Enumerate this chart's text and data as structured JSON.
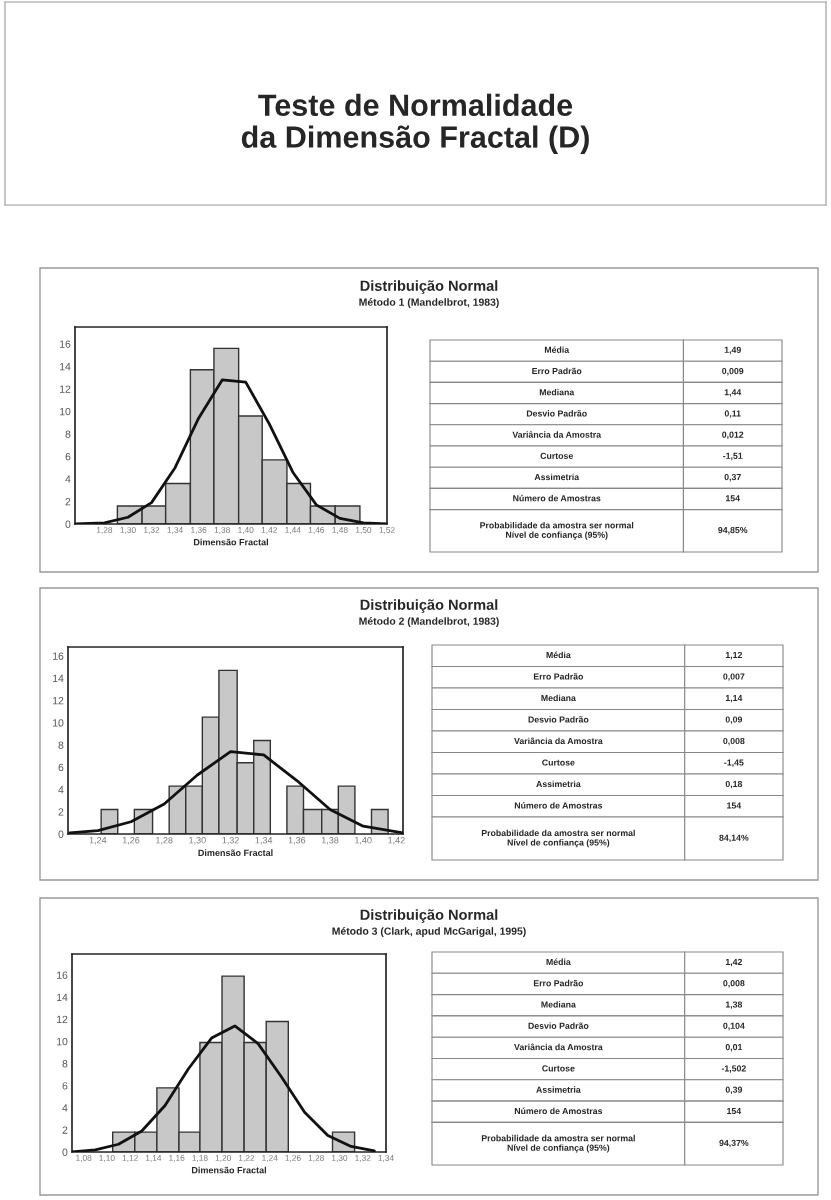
{
  "chart_data": [
    {
      "type": "other",
      "title": "Teste de Normalidade\nda Dimensão Fractal (D)"
    },
    {
      "type": "histogram",
      "title": "Distribuição Normal",
      "subtitle": "Método 1 (Mandelbrot, 1983)",
      "xlabel": "Dimensão Fractal",
      "series": [
        {
          "type": "histogram",
          "color": "#c8c8c8",
          "bins": [
            1.291,
            1.312,
            1.332,
            1.353,
            1.373,
            1.394,
            1.414,
            1.435,
            1.455,
            1.476,
            1.497
          ],
          "values": [
            1.6,
            1.6,
            3.6,
            13.7,
            15.6,
            9.6,
            5.7,
            3.6,
            1.6,
            1.6
          ]
        },
        {
          "type": "line",
          "color": "#111111",
          "x": [
            1.255,
            1.28,
            1.3,
            1.32,
            1.34,
            1.36,
            1.38,
            1.4,
            1.42,
            1.44,
            1.46,
            1.48,
            1.5,
            1.52
          ],
          "values": [
            0.0,
            0.1,
            0.6,
            1.9,
            5.0,
            9.4,
            12.8,
            12.6,
            8.9,
            4.6,
            1.7,
            0.5,
            0.1,
            0.0
          ]
        }
      ],
      "xlim": [
        1.255,
        1.52
      ],
      "ylim": [
        0,
        17.5
      ],
      "xticks": [
        {
          "value": 1.28,
          "label": "1,28"
        },
        {
          "value": 1.3,
          "label": "1,30"
        },
        {
          "value": 1.32,
          "label": "1,32"
        },
        {
          "value": 1.34,
          "label": "1,34"
        },
        {
          "value": 1.36,
          "label": "1,36"
        },
        {
          "value": 1.38,
          "label": "1,38"
        },
        {
          "value": 1.4,
          "label": "1,40"
        },
        {
          "value": 1.42,
          "label": "1,42"
        },
        {
          "value": 1.44,
          "label": "1,44"
        },
        {
          "value": 1.46,
          "label": "1,46"
        },
        {
          "value": 1.48,
          "label": "1,48"
        },
        {
          "value": 1.5,
          "label": "1,50"
        },
        {
          "value": 1.52,
          "label": "1,52"
        }
      ],
      "yticks": [
        0,
        2,
        4,
        6,
        8,
        10,
        12,
        14,
        16
      ],
      "annotations": [
        "Média",
        "1,49",
        "Erro Padrão",
        "0,009",
        "Mediana",
        "1,44",
        "Desvio Padrão",
        "0,11",
        "Variância da Amostra",
        "0,012",
        "Curtose",
        "-1,51",
        "Assimetria",
        "0,37",
        "Número de Amostras",
        "154",
        "Probabilidade da amostra ser normal\nNível de confiança (95%)",
        "94,85%"
      ]
    },
    {
      "type": "histogram",
      "title": "Distribuição Normal",
      "subtitle": "Método 2 (Mandelbrot, 1983)",
      "xlabel": "Dimensão Fractal",
      "series": [
        {
          "type": "histogram",
          "color": "#c8c8c8",
          "bins": [
            1.242,
            1.252,
            1.262,
            1.273,
            1.283,
            1.293,
            1.303,
            1.313,
            1.324,
            1.334,
            1.344,
            1.354,
            1.364,
            1.375,
            1.385,
            1.395,
            1.405,
            1.415
          ],
          "values": [
            2.2,
            null,
            2.2,
            null,
            4.3,
            4.3,
            10.5,
            14.7,
            6.4,
            8.4,
            null,
            4.3,
            2.2,
            2.2,
            4.3,
            null,
            2.2
          ]
        },
        {
          "type": "line",
          "color": "#111111",
          "x": [
            1.223,
            1.24,
            1.26,
            1.28,
            1.3,
            1.32,
            1.34,
            1.36,
            1.38,
            1.4,
            1.424
          ],
          "values": [
            0.1,
            0.3,
            1.1,
            2.7,
            5.3,
            7.4,
            7.1,
            4.8,
            2.2,
            0.7,
            0.1
          ]
        }
      ],
      "xlim": [
        1.222,
        1.424
      ],
      "ylim": [
        0,
        16.8
      ],
      "xticks": [
        {
          "value": 1.24,
          "label": "1,24"
        },
        {
          "value": 1.26,
          "label": "1,26"
        },
        {
          "value": 1.28,
          "label": "1,28"
        },
        {
          "value": 1.3,
          "label": "1,30"
        },
        {
          "value": 1.32,
          "label": "1,32"
        },
        {
          "value": 1.34,
          "label": "1,34"
        },
        {
          "value": 1.36,
          "label": "1,36"
        },
        {
          "value": 1.38,
          "label": "1,38"
        },
        {
          "value": 1.4,
          "label": "1,40"
        },
        {
          "value": 1.42,
          "label": "1,42"
        }
      ],
      "yticks": [
        0,
        2,
        4,
        6,
        8,
        10,
        12,
        14,
        16
      ],
      "annotations": [
        "Média",
        "1,12",
        "Erro Padrão",
        "0,007",
        "Mediana",
        "1,14",
        "Desvio Padrão",
        "0,09",
        "Variância da Amostra",
        "0,008",
        "Curtose",
        "-1,45",
        "Assimetria",
        "0,18",
        "Número de Amostras",
        "154",
        "Probabilidade da amostra ser normal\nNível de confiança (95%)",
        "84,14%"
      ]
    },
    {
      "type": "histogram",
      "title": "Distribuição Normal",
      "subtitle": "Método 3 (Clark, apud McGarigal, 1995)",
      "xlabel": "Dimensão Fractal",
      "series": [
        {
          "type": "histogram",
          "color": "#c8c8c8",
          "bins": [
            1.105,
            1.124,
            1.143,
            1.162,
            1.18,
            1.199,
            1.218,
            1.237,
            1.256,
            1.294,
            1.313
          ],
          "values": [
            1.8,
            1.8,
            5.8,
            1.8,
            9.9,
            15.9,
            9.9,
            11.8,
            null,
            1.8
          ]
        },
        {
          "type": "line",
          "color": "#111111",
          "x": [
            1.07,
            1.09,
            1.11,
            1.13,
            1.15,
            1.17,
            1.19,
            1.21,
            1.23,
            1.25,
            1.27,
            1.29,
            1.31,
            1.33
          ],
          "values": [
            0.0,
            0.2,
            0.7,
            1.9,
            4.2,
            7.5,
            10.3,
            11.4,
            9.8,
            6.8,
            3.6,
            1.5,
            0.5,
            0.1
          ]
        }
      ],
      "xlim": [
        1.07,
        1.34
      ],
      "ylim": [
        0,
        17.9
      ],
      "xticks": [
        {
          "value": 1.08,
          "label": "1,08"
        },
        {
          "value": 1.1,
          "label": "1,10"
        },
        {
          "value": 1.12,
          "label": "1,12"
        },
        {
          "value": 1.14,
          "label": "1,14"
        },
        {
          "value": 1.16,
          "label": "1,16"
        },
        {
          "value": 1.18,
          "label": "1,18"
        },
        {
          "value": 1.2,
          "label": "1,20"
        },
        {
          "value": 1.22,
          "label": "1,22"
        },
        {
          "value": 1.24,
          "label": "1,24"
        },
        {
          "value": 1.26,
          "label": "1,26"
        },
        {
          "value": 1.28,
          "label": "1,28"
        },
        {
          "value": 1.3,
          "label": "1,30"
        },
        {
          "value": 1.32,
          "label": "1,32"
        },
        {
          "value": 1.34,
          "label": "1,34"
        }
      ],
      "yticks": [
        0,
        2,
        4,
        6,
        8,
        10,
        12,
        14,
        16
      ],
      "annotations": [
        "Média",
        "1,42",
        "Erro Padrão",
        "0,008",
        "Mediana",
        "1,38",
        "Desvio Padrão",
        "0,104",
        "Variância da Amostra",
        "0,01",
        "Curtose",
        "-1,502",
        "Assimetria",
        "0,39",
        "Número de Amostras",
        "154",
        "Probabilidade da amostra ser normal\nNível de confiança (95%)",
        "94,37%"
      ]
    }
  ]
}
